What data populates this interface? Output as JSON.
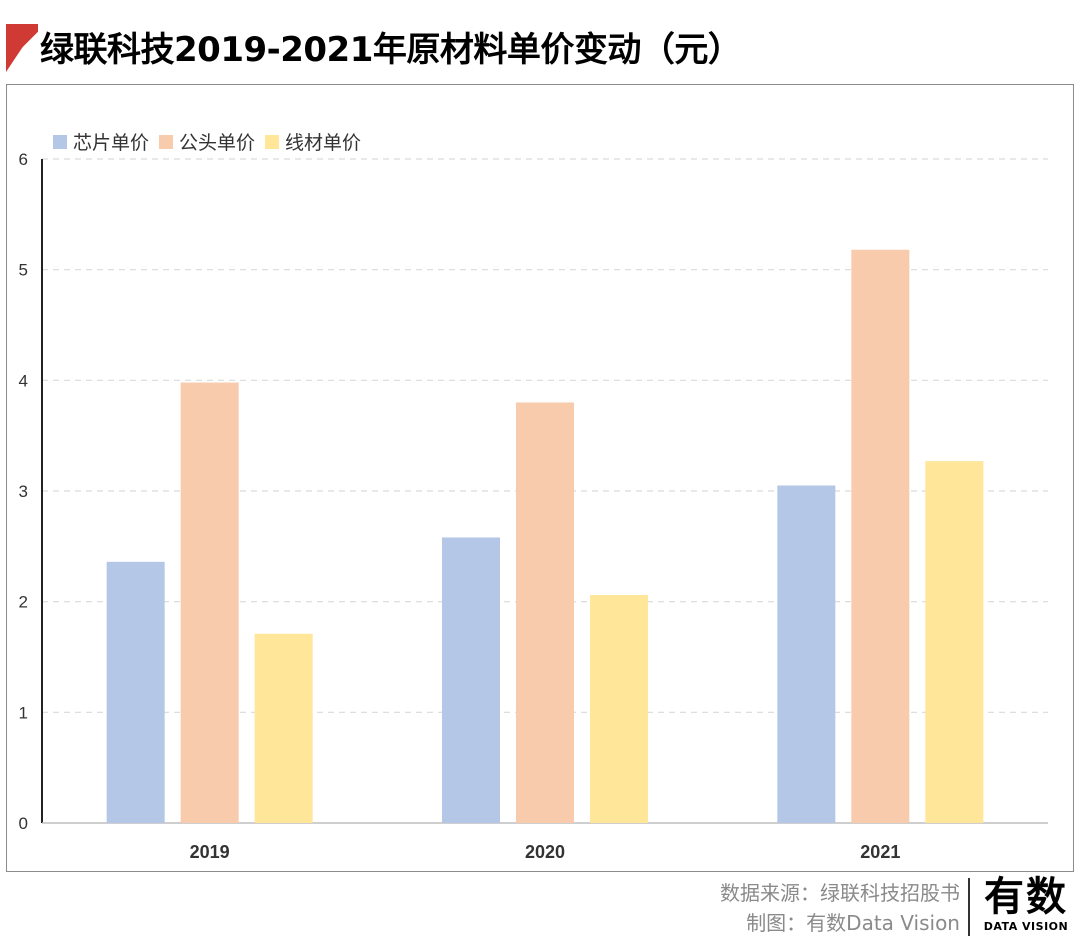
{
  "title": "绿联科技2019-2021年原材料单价变动（元）",
  "colors": {
    "accent": "#d03a34",
    "series": [
      "#b4c7e7",
      "#f8cbad",
      "#ffe699"
    ]
  },
  "chart_data": {
    "type": "bar",
    "categories": [
      "2019",
      "2020",
      "2021"
    ],
    "series": [
      {
        "name": "芯片单价",
        "values": [
          2.36,
          2.58,
          3.05
        ]
      },
      {
        "name": "公头单价",
        "values": [
          3.98,
          3.8,
          5.18
        ]
      },
      {
        "name": "线材单价",
        "values": [
          1.71,
          2.06,
          3.27
        ]
      }
    ],
    "yticks": [
      "0",
      "1",
      "2",
      "3",
      "4",
      "5",
      "6"
    ],
    "ylim": [
      0,
      6
    ],
    "grid": true,
    "legend_position": "top-left"
  },
  "footer": {
    "source": "数据来源：绿联科技招股书",
    "credit": "制图：有数Data Vision"
  },
  "logo": {
    "main": "有数",
    "sub": "DATA VISION"
  }
}
